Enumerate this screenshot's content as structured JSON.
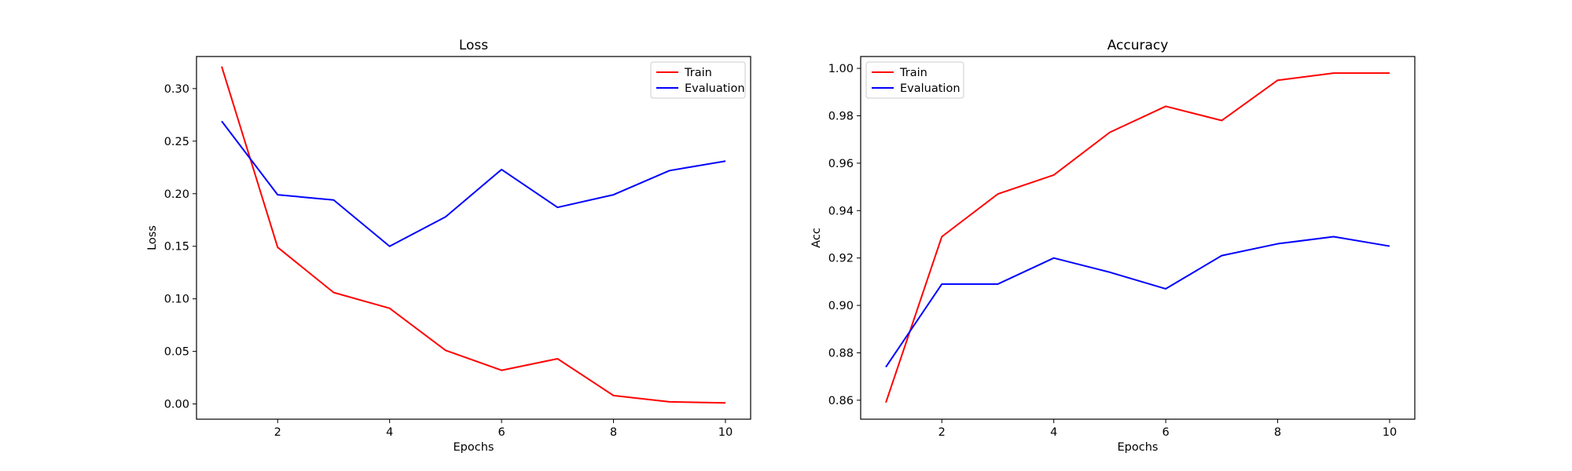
{
  "chart_data": [
    {
      "type": "line",
      "title": "Loss",
      "xlabel": "Epochs",
      "ylabel": "Loss",
      "x": [
        1,
        2,
        3,
        4,
        5,
        6,
        7,
        8,
        9,
        10
      ],
      "xlim": [
        0.55,
        10.45
      ],
      "ylim": [
        -0.0145,
        0.3305
      ],
      "xticks": [
        2,
        4,
        6,
        8,
        10
      ],
      "xtick_labels": [
        "2",
        "4",
        "6",
        "8",
        "10"
      ],
      "yticks": [
        0.0,
        0.05,
        0.1,
        0.15,
        0.2,
        0.25,
        0.3
      ],
      "ytick_labels": [
        "0.00",
        "0.05",
        "0.10",
        "0.15",
        "0.20",
        "0.25",
        "0.30"
      ],
      "grid": false,
      "legend_position": "upper right",
      "series": [
        {
          "name": "Train",
          "color": "#ff0000",
          "values": [
            0.321,
            0.149,
            0.106,
            0.091,
            0.051,
            0.032,
            0.043,
            0.008,
            0.002,
            0.001
          ]
        },
        {
          "name": "Evaluation",
          "color": "#0000ff",
          "values": [
            0.269,
            0.199,
            0.194,
            0.15,
            0.178,
            0.223,
            0.187,
            0.199,
            0.222,
            0.231
          ]
        }
      ]
    },
    {
      "type": "line",
      "title": "Accuracy",
      "xlabel": "Epochs",
      "ylabel": "Acc",
      "x": [
        1,
        2,
        3,
        4,
        5,
        6,
        7,
        8,
        9,
        10
      ],
      "xlim": [
        0.55,
        10.45
      ],
      "ylim": [
        0.852,
        1.005
      ],
      "xticks": [
        2,
        4,
        6,
        8,
        10
      ],
      "xtick_labels": [
        "2",
        "4",
        "6",
        "8",
        "10"
      ],
      "yticks": [
        0.86,
        0.88,
        0.9,
        0.92,
        0.94,
        0.96,
        0.98,
        1.0
      ],
      "ytick_labels": [
        "0.86",
        "0.88",
        "0.90",
        "0.92",
        "0.94",
        "0.96",
        "0.98",
        "1.00"
      ],
      "grid": false,
      "legend_position": "upper left",
      "series": [
        {
          "name": "Train",
          "color": "#ff0000",
          "values": [
            0.859,
            0.929,
            0.947,
            0.955,
            0.973,
            0.984,
            0.978,
            0.995,
            0.998,
            0.998
          ]
        },
        {
          "name": "Evaluation",
          "color": "#0000ff",
          "values": [
            0.874,
            0.909,
            0.909,
            0.92,
            0.914,
            0.907,
            0.921,
            0.926,
            0.929,
            0.925
          ]
        }
      ]
    }
  ]
}
